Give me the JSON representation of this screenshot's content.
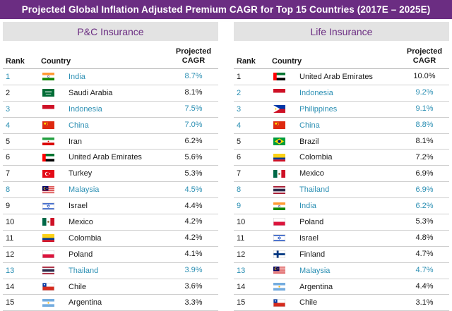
{
  "title": "Projected Global Inflation Adjusted Premium CAGR for Top 15 Countries (2017E – 2025E)",
  "headers": {
    "rank": "Rank",
    "country": "Country",
    "cagr_line1": "Projected",
    "cagr_line2": "CAGR"
  },
  "colors": {
    "banner": "#6b2d82",
    "highlight": "#2b8fb3",
    "panel": "#e3e3e3"
  },
  "chart_data": [
    {
      "type": "table",
      "title": "P&C Insurance",
      "columns": [
        "Rank",
        "Country",
        "Projected CAGR"
      ],
      "rows": [
        {
          "rank": "1",
          "country": "India",
          "cagr": "8.7%",
          "flag": "india",
          "highlight": true
        },
        {
          "rank": "2",
          "country": "Saudi Arabia",
          "cagr": "8.1%",
          "flag": "saudi",
          "highlight": false
        },
        {
          "rank": "3",
          "country": "Indonesia",
          "cagr": "7.5%",
          "flag": "indonesia",
          "highlight": true
        },
        {
          "rank": "4",
          "country": "China",
          "cagr": "7.0%",
          "flag": "china",
          "highlight": true
        },
        {
          "rank": "5",
          "country": "Iran",
          "cagr": "6.2%",
          "flag": "iran",
          "highlight": false
        },
        {
          "rank": "6",
          "country": "United Arab Emirates",
          "cagr": "5.6%",
          "flag": "uae",
          "highlight": false
        },
        {
          "rank": "7",
          "country": "Turkey",
          "cagr": "5.3%",
          "flag": "turkey",
          "highlight": false
        },
        {
          "rank": "8",
          "country": "Malaysia",
          "cagr": "4.5%",
          "flag": "malaysia",
          "highlight": true
        },
        {
          "rank": "9",
          "country": "Israel",
          "cagr": "4.4%",
          "flag": "israel",
          "highlight": false
        },
        {
          "rank": "10",
          "country": "Mexico",
          "cagr": "4.2%",
          "flag": "mexico",
          "highlight": false
        },
        {
          "rank": "11",
          "country": "Colombia",
          "cagr": "4.2%",
          "flag": "colombia",
          "highlight": false
        },
        {
          "rank": "12",
          "country": "Poland",
          "cagr": "4.1%",
          "flag": "poland",
          "highlight": false
        },
        {
          "rank": "13",
          "country": "Thailand",
          "cagr": "3.9%",
          "flag": "thailand",
          "highlight": true
        },
        {
          "rank": "14",
          "country": "Chile",
          "cagr": "3.6%",
          "flag": "chile",
          "highlight": false
        },
        {
          "rank": "15",
          "country": "Argentina",
          "cagr": "3.3%",
          "flag": "argentina",
          "highlight": false
        }
      ]
    },
    {
      "type": "table",
      "title": "Life Insurance",
      "columns": [
        "Rank",
        "Country",
        "Projected CAGR"
      ],
      "rows": [
        {
          "rank": "1",
          "country": "United Arab Emirates",
          "cagr": "10.0%",
          "flag": "uae",
          "highlight": false
        },
        {
          "rank": "2",
          "country": "Indonesia",
          "cagr": "9.2%",
          "flag": "indonesia",
          "highlight": true
        },
        {
          "rank": "3",
          "country": "Philippines",
          "cagr": "9.1%",
          "flag": "philippines",
          "highlight": true
        },
        {
          "rank": "4",
          "country": "China",
          "cagr": "8.8%",
          "flag": "china",
          "highlight": true
        },
        {
          "rank": "5",
          "country": "Brazil",
          "cagr": "8.1%",
          "flag": "brazil",
          "highlight": false
        },
        {
          "rank": "6",
          "country": "Colombia",
          "cagr": "7.2%",
          "flag": "colombia",
          "highlight": false
        },
        {
          "rank": "7",
          "country": "Mexico",
          "cagr": "6.9%",
          "flag": "mexico",
          "highlight": false
        },
        {
          "rank": "8",
          "country": "Thailand",
          "cagr": "6.9%",
          "flag": "thailand",
          "highlight": true
        },
        {
          "rank": "9",
          "country": "India",
          "cagr": "6.2%",
          "flag": "india",
          "highlight": true
        },
        {
          "rank": "10",
          "country": "Poland",
          "cagr": "5.3%",
          "flag": "poland",
          "highlight": false
        },
        {
          "rank": "11",
          "country": "Israel",
          "cagr": "4.8%",
          "flag": "israel",
          "highlight": false
        },
        {
          "rank": "12",
          "country": "Finland",
          "cagr": "4.7%",
          "flag": "finland",
          "highlight": false
        },
        {
          "rank": "13",
          "country": "Malaysia",
          "cagr": "4.7%",
          "flag": "malaysia",
          "highlight": true
        },
        {
          "rank": "14",
          "country": "Argentina",
          "cagr": "4.4%",
          "flag": "argentina",
          "highlight": false
        },
        {
          "rank": "15",
          "country": "Chile",
          "cagr": "3.1%",
          "flag": "chile",
          "highlight": false
        }
      ]
    }
  ]
}
